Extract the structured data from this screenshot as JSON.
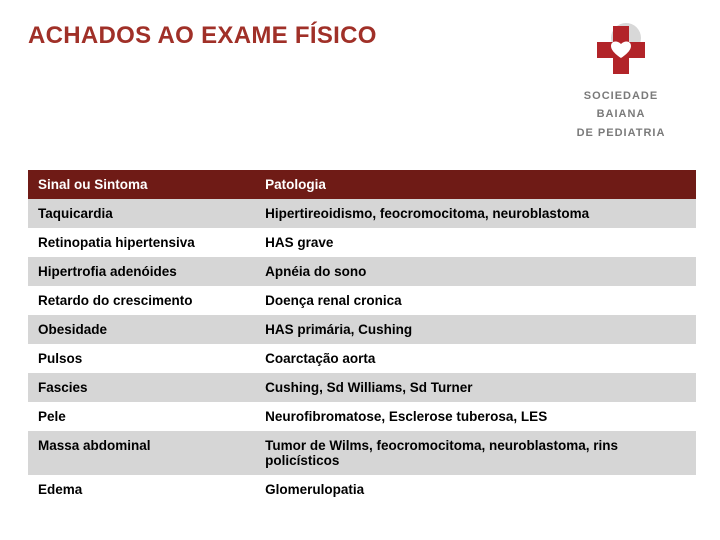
{
  "title": "ACHADOS AO EXAME FÍSICO",
  "logo": {
    "line1": "SOCIEDADE",
    "line2": "BAIANA",
    "line3": "DE PEDIATRIA",
    "cross_color": "#b22429",
    "circle_color": "#d8d8d8"
  },
  "table": {
    "type": "table",
    "header_bg": "#6f1b16",
    "header_fg": "#ffffff",
    "row_even_bg": "#ffffff",
    "row_odd_bg": "#d6d6d6",
    "cell_fg": "#000000",
    "fontsize": 13.5,
    "font_weight": "bold",
    "columns": [
      {
        "key": "sign",
        "label": "Sinal ou Sintoma",
        "width": "34%",
        "align": "left"
      },
      {
        "key": "path",
        "label": "Patologia",
        "width": "66%",
        "align": "left"
      }
    ],
    "rows": [
      {
        "sign": "Taquicardia",
        "path": "Hipertireoidismo, feocromocitoma, neuroblastoma"
      },
      {
        "sign": "Retinopatia hipertensiva",
        "path": "HAS grave"
      },
      {
        "sign": "Hipertrofia adenóides",
        "path": "Apnéia do sono"
      },
      {
        "sign": "Retardo do crescimento",
        "path": "Doença renal cronica"
      },
      {
        "sign": "Obesidade",
        "path": "HAS primária, Cushing"
      },
      {
        "sign": "Pulsos",
        "path": "Coarctação aorta"
      },
      {
        "sign": "Fascies",
        "path": "Cushing, Sd Williams, Sd Turner"
      },
      {
        "sign": "Pele",
        "path": "Neurofibromatose, Esclerose tuberosa, LES"
      },
      {
        "sign": "Massa abdominal",
        "path": "Tumor de Wilms, feocromocitoma, neuroblastoma, rins policísticos"
      },
      {
        "sign": "Edema",
        "path": "Glomerulopatia"
      }
    ]
  }
}
